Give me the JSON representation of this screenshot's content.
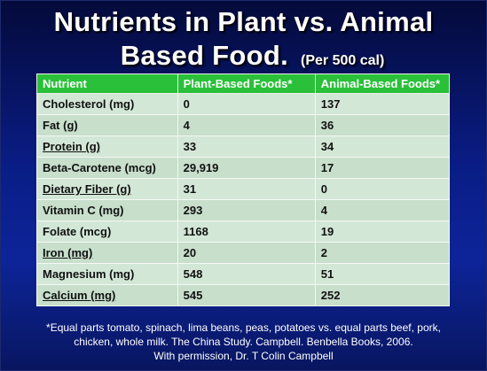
{
  "title": {
    "line1": "Nutrients in Plant vs. Animal",
    "line2": "Based Food.",
    "subtitle": "(Per 500 cal)"
  },
  "table": {
    "headers": [
      "Nutrient",
      "Plant-Based Foods*",
      "Animal-Based Foods*"
    ],
    "rows": [
      {
        "nutrient": "Cholesterol (mg)",
        "plant": "0",
        "animal": "137"
      },
      {
        "nutrient": "Fat (g)",
        "plant": "4",
        "animal": "36"
      },
      {
        "nutrient": "Protein (g)",
        "plant": "33",
        "animal": "34"
      },
      {
        "nutrient": "Beta-Carotene (mcg)",
        "plant": "29,919",
        "animal": "17"
      },
      {
        "nutrient": "Dietary Fiber (g)",
        "plant": "31",
        "animal": "0"
      },
      {
        "nutrient": "Vitamin C (mg)",
        "plant": "293",
        "animal": "4"
      },
      {
        "nutrient": "Folate (mcg)",
        "plant": "1168",
        "animal": "19"
      },
      {
        "nutrient": "Iron (mg)",
        "plant": "20",
        "animal": "2"
      },
      {
        "nutrient": "Magnesium (mg)",
        "plant": "548",
        "animal": "51"
      },
      {
        "nutrient": "Calcium (mg)",
        "plant": "545",
        "animal": "252"
      }
    ]
  },
  "footnote": {
    "line1": "*Equal parts tomato, spinach, lima beans, peas, potatoes vs. equal parts beef, pork,",
    "line2": "chicken, whole milk.  The China Study. Campbell. Benbella Books, 2006.",
    "line3": "With permission, Dr. T Colin Campbell"
  },
  "colors": {
    "background": "#0a1d86",
    "header_green": "#2ac03a",
    "row_light": "#d3e7d6",
    "row_dark": "#c7dfcb"
  }
}
